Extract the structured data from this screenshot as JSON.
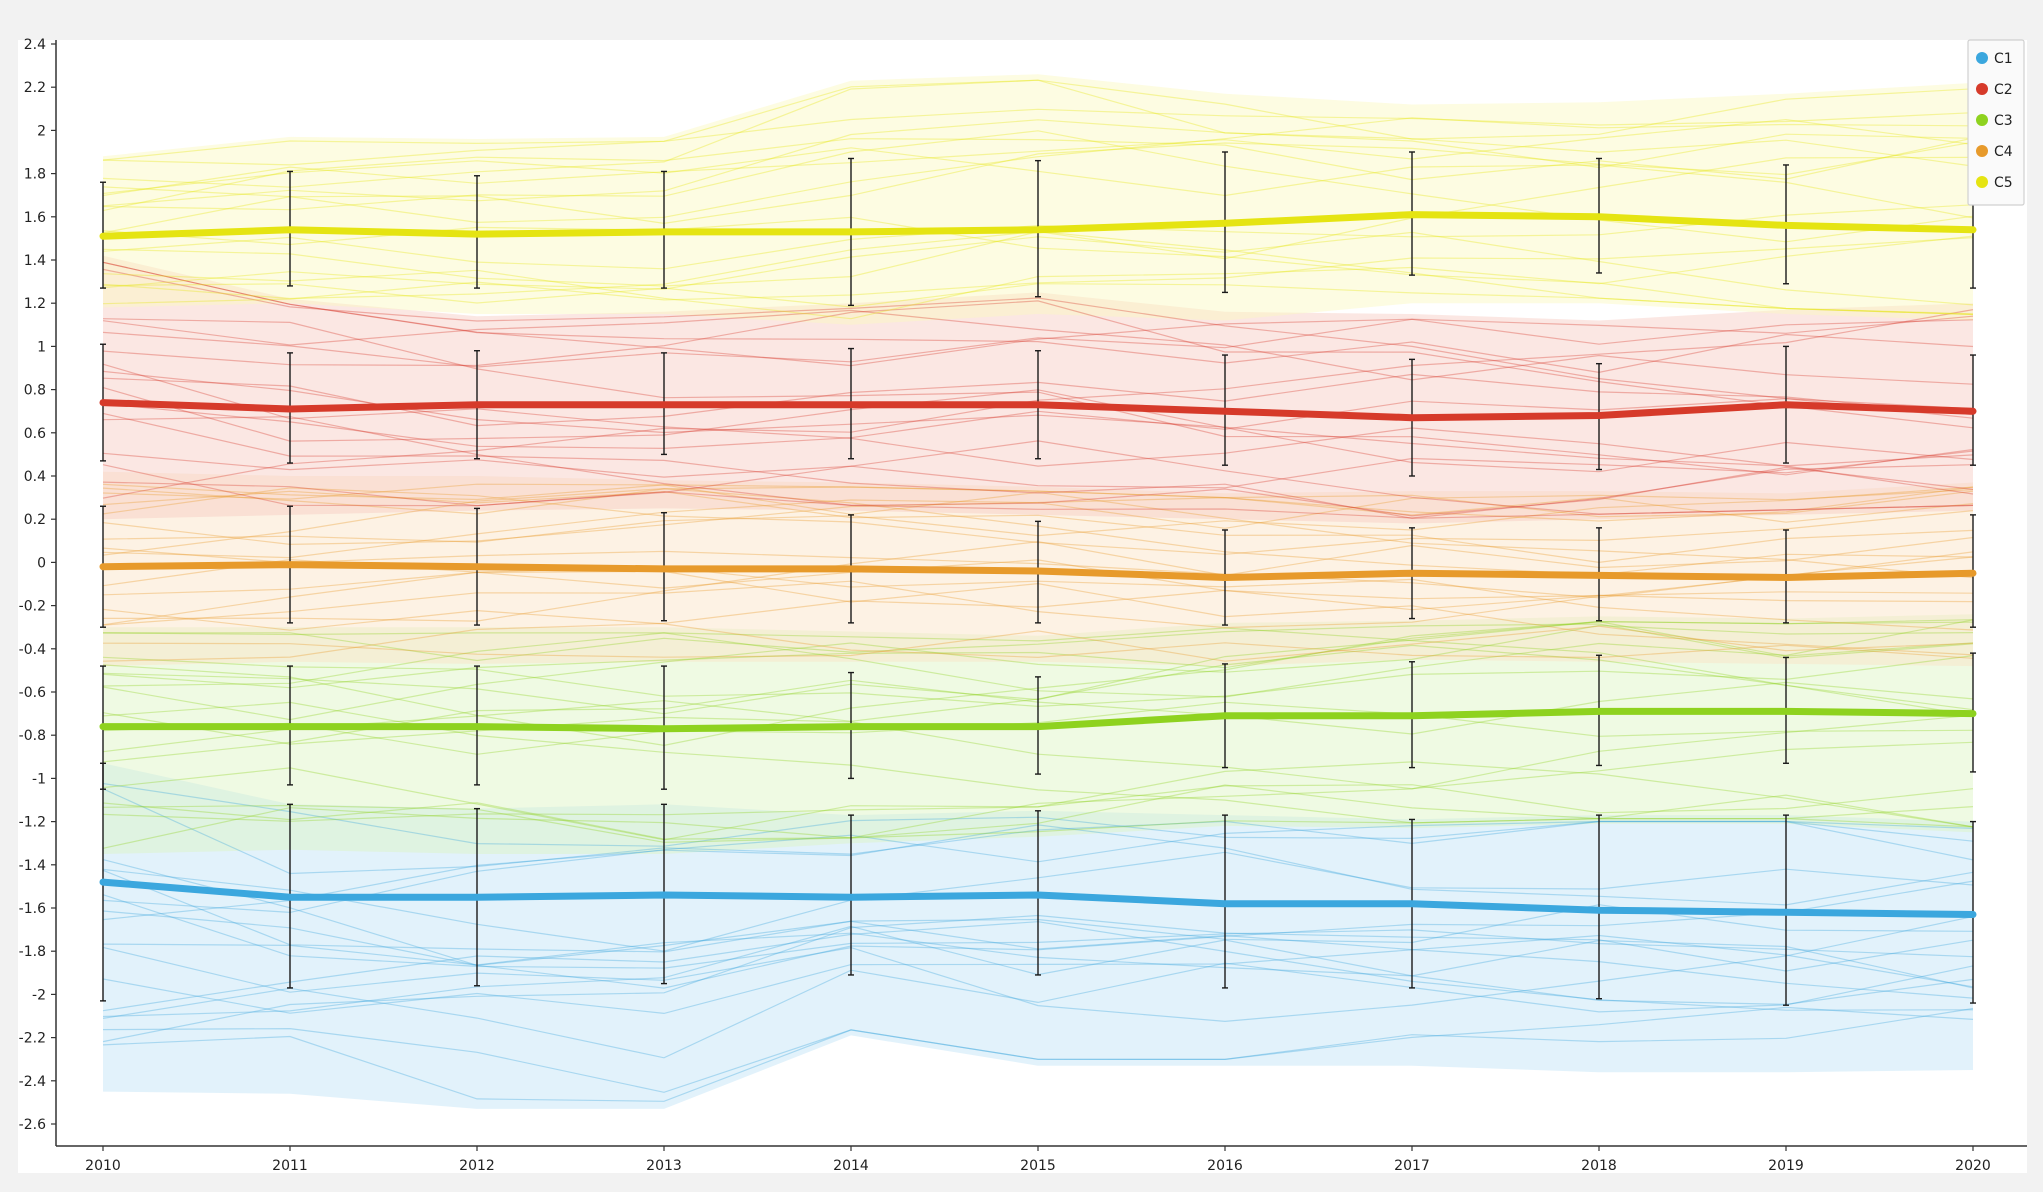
{
  "chart_data": {
    "type": "line",
    "title": "",
    "xlabel": "",
    "ylabel": "",
    "x": [
      "2010",
      "2011",
      "2012",
      "2013",
      "2014",
      "2015",
      "2016",
      "2017",
      "2018",
      "2019",
      "2020"
    ],
    "ylim": [
      -2.7,
      2.4
    ],
    "y_ticks": [
      "2.4",
      "2.2",
      "2",
      "1.8",
      "1.6",
      "1.4",
      "1.2",
      "1",
      "0.8",
      "0.6",
      "0.4",
      "0.2",
      "0",
      "-0.2",
      "-0.4",
      "-0.6",
      "-0.8",
      "-1",
      "-1.2",
      "-1.4",
      "-1.6",
      "-1.8",
      "-2",
      "-2.2",
      "-2.4",
      "-2.6"
    ],
    "grid": false,
    "legend_position": "top-right",
    "series": [
      {
        "name": "C1",
        "color": "#3ba7de",
        "band_color": "#bfe3f6",
        "mean": [
          -1.48,
          -1.55,
          -1.55,
          -1.54,
          -1.55,
          -1.54,
          -1.58,
          -1.58,
          -1.61,
          -1.62,
          -1.63
        ],
        "error_low": [
          -2.03,
          -1.97,
          -1.96,
          -1.95,
          -1.91,
          -1.91,
          -1.97,
          -1.97,
          -2.02,
          -2.05,
          -2.04
        ],
        "error_high": [
          -0.93,
          -1.12,
          -1.14,
          -1.12,
          -1.17,
          -1.15,
          -1.17,
          -1.19,
          -1.17,
          -1.17,
          -1.2
        ],
        "band_low": [
          -2.45,
          -2.46,
          -2.53,
          -2.53,
          -2.19,
          -2.33,
          -2.33,
          -2.33,
          -2.36,
          -2.36,
          -2.35
        ],
        "band_high": [
          -0.93,
          -1.12,
          -1.14,
          -1.12,
          -1.17,
          -1.15,
          -1.17,
          -1.19,
          -1.17,
          -1.17,
          -1.2
        ]
      },
      {
        "name": "C2",
        "color": "#d63a2a",
        "band_color": "#f6c9c2",
        "mean": [
          0.74,
          0.71,
          0.73,
          0.73,
          0.73,
          0.73,
          0.7,
          0.67,
          0.68,
          0.73,
          0.7
        ],
        "error_low": [
          0.47,
          0.46,
          0.48,
          0.5,
          0.48,
          0.48,
          0.45,
          0.4,
          0.43,
          0.46,
          0.45
        ],
        "error_high": [
          1.01,
          0.97,
          0.98,
          0.97,
          0.99,
          0.98,
          0.96,
          0.94,
          0.92,
          1.0,
          0.96
        ],
        "band_low": [
          0.2,
          0.22,
          0.24,
          0.25,
          0.24,
          0.22,
          0.2,
          0.18,
          0.2,
          0.22,
          0.24
        ],
        "band_high": [
          1.42,
          1.22,
          1.14,
          1.16,
          1.2,
          1.25,
          1.16,
          1.15,
          1.12,
          1.17,
          1.2
        ]
      },
      {
        "name": "C3",
        "color": "#8ed21f",
        "band_color": "#dcf4c2",
        "mean": [
          -0.76,
          -0.76,
          -0.76,
          -0.77,
          -0.76,
          -0.76,
          -0.71,
          -0.71,
          -0.69,
          -0.69,
          -0.7
        ],
        "error_low": [
          -1.05,
          -1.03,
          -1.03,
          -1.05,
          -1.0,
          -0.98,
          -0.95,
          -0.95,
          -0.94,
          -0.93,
          -0.97
        ],
        "error_high": [
          -0.48,
          -0.48,
          -0.48,
          -0.48,
          -0.51,
          -0.53,
          -0.47,
          -0.46,
          -0.43,
          -0.44,
          -0.42
        ],
        "band_low": [
          -1.35,
          -1.33,
          -1.35,
          -1.35,
          -1.3,
          -1.27,
          -1.22,
          -1.23,
          -1.21,
          -1.21,
          -1.25
        ],
        "band_high": [
          -0.3,
          -0.3,
          -0.3,
          -0.3,
          -0.32,
          -0.34,
          -0.28,
          -0.27,
          -0.25,
          -0.26,
          -0.24
        ]
      },
      {
        "name": "C4",
        "color": "#e79a2b",
        "band_color": "#fbe2c4",
        "mean": [
          -0.02,
          -0.01,
          -0.02,
          -0.03,
          -0.03,
          -0.04,
          -0.07,
          -0.05,
          -0.06,
          -0.07,
          -0.05
        ],
        "error_low": [
          -0.3,
          -0.28,
          -0.29,
          -0.27,
          -0.28,
          -0.28,
          -0.29,
          -0.26,
          -0.27,
          -0.28,
          -0.3
        ],
        "error_high": [
          0.26,
          0.26,
          0.25,
          0.23,
          0.22,
          0.19,
          0.15,
          0.16,
          0.16,
          0.15,
          0.22
        ],
        "band_low": [
          -0.48,
          -0.46,
          -0.47,
          -0.46,
          -0.46,
          -0.46,
          -0.48,
          -0.45,
          -0.46,
          -0.47,
          -0.48
        ],
        "band_high": [
          0.42,
          0.4,
          0.4,
          0.38,
          0.37,
          0.35,
          0.32,
          0.33,
          0.33,
          0.32,
          0.37
        ]
      },
      {
        "name": "C5",
        "color": "#e5e412",
        "band_color": "#fbf8bf",
        "mean": [
          1.51,
          1.54,
          1.52,
          1.53,
          1.53,
          1.54,
          1.57,
          1.61,
          1.6,
          1.56,
          1.54
        ],
        "error_low": [
          1.27,
          1.28,
          1.27,
          1.27,
          1.19,
          1.23,
          1.25,
          1.33,
          1.34,
          1.29,
          1.27
        ],
        "error_high": [
          1.76,
          1.81,
          1.79,
          1.81,
          1.87,
          1.86,
          1.9,
          1.9,
          1.87,
          1.84,
          1.81
        ],
        "band_low": [
          1.18,
          1.2,
          1.15,
          1.15,
          1.1,
          1.15,
          1.12,
          1.2,
          1.2,
          1.15,
          1.12
        ],
        "band_high": [
          1.88,
          1.97,
          1.96,
          1.97,
          2.23,
          2.26,
          2.17,
          2.12,
          2.13,
          2.17,
          2.22
        ]
      }
    ]
  }
}
